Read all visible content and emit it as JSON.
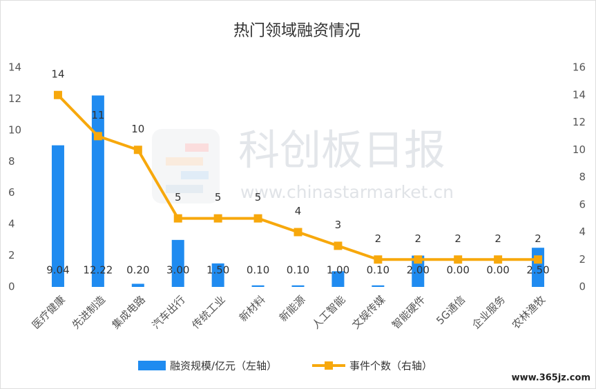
{
  "chart_data": {
    "type": "bar_line",
    "title": "热门领域融资情况",
    "categories": [
      "医疗健康",
      "先进制造",
      "集成电路",
      "汽车出行",
      "传统工业",
      "新材料",
      "新能源",
      "人工智能",
      "文娱传媒",
      "智能硬件",
      "5G通信",
      "企业服务",
      "农林渔牧"
    ],
    "series": [
      {
        "name": "融资规模/亿元（左轴）",
        "type": "bar",
        "color": "#1f8bf0",
        "values": [
          9.04,
          12.22,
          0.2,
          3.0,
          1.5,
          0.1,
          0.1,
          1.0,
          0.1,
          2.0,
          0.0,
          0.0,
          2.5
        ],
        "value_labels": [
          "9.04",
          "12.22",
          "0.20",
          "3.00",
          "1.50",
          "0.10",
          "0.10",
          "1.00",
          "0.10",
          "2.00",
          "0.00",
          "0.00",
          "2.50"
        ]
      },
      {
        "name": "事件个数（右轴）",
        "type": "line",
        "axis": "y2",
        "color": "#f7a80c",
        "values": [
          14,
          11,
          10,
          5,
          5,
          5,
          4,
          3,
          2,
          2,
          2,
          2,
          2
        ]
      }
    ],
    "ylim": [
      0,
      14
    ],
    "yticks": [
      0,
      2,
      4,
      6,
      8,
      10,
      12,
      14
    ],
    "y2lim": [
      0,
      16
    ],
    "y2ticks": [
      0,
      2,
      4,
      6,
      8,
      10,
      12,
      14,
      16
    ],
    "legend": "bottom",
    "watermarks": [
      "科创板日报",
      "www.chinastarmarket.cn",
      "www.365jz.com"
    ]
  }
}
